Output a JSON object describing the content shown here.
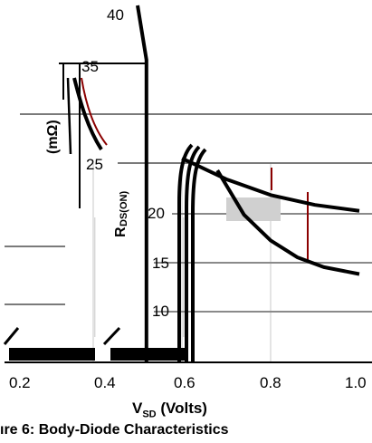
{
  "chart_data": {
    "type": "line",
    "caption": "ıre 6: Body-Diode Characteristics",
    "xlabel": {
      "main": "V",
      "sub": "SD",
      "rest": " (Volts)"
    },
    "ylabel": "RDS(ON) (mΩ)",
    "ylabel_fragments": [
      "(mΩ)",
      "R",
      "DS(ON)"
    ],
    "x_ticks": [
      "0.2",
      "0.4",
      "0.6",
      "0.8",
      "1.0"
    ],
    "y_ticks": [
      "40",
      "35",
      "25",
      "20",
      "15",
      "10"
    ],
    "xlim": [
      0.2,
      1.0
    ],
    "grid": true,
    "series": [
      {
        "x": [
          0.5,
          0.52
        ],
        "y": [
          40,
          35
        ]
      },
      {
        "x": [
          0.52,
          0.52
        ],
        "y": [
          35,
          0
        ]
      },
      {
        "x": [
          0.6,
          0.62,
          0.7,
          0.8,
          0.9,
          1.0
        ],
        "y": [
          25.6,
          25.2,
          23.5,
          21.9,
          20.9,
          20.3
        ]
      },
      {
        "x": [
          0.68,
          0.74,
          0.8,
          0.86,
          0.92,
          1.0
        ],
        "y": [
          24.4,
          19.9,
          17.3,
          15.6,
          14.6,
          13.9
        ]
      }
    ]
  }
}
